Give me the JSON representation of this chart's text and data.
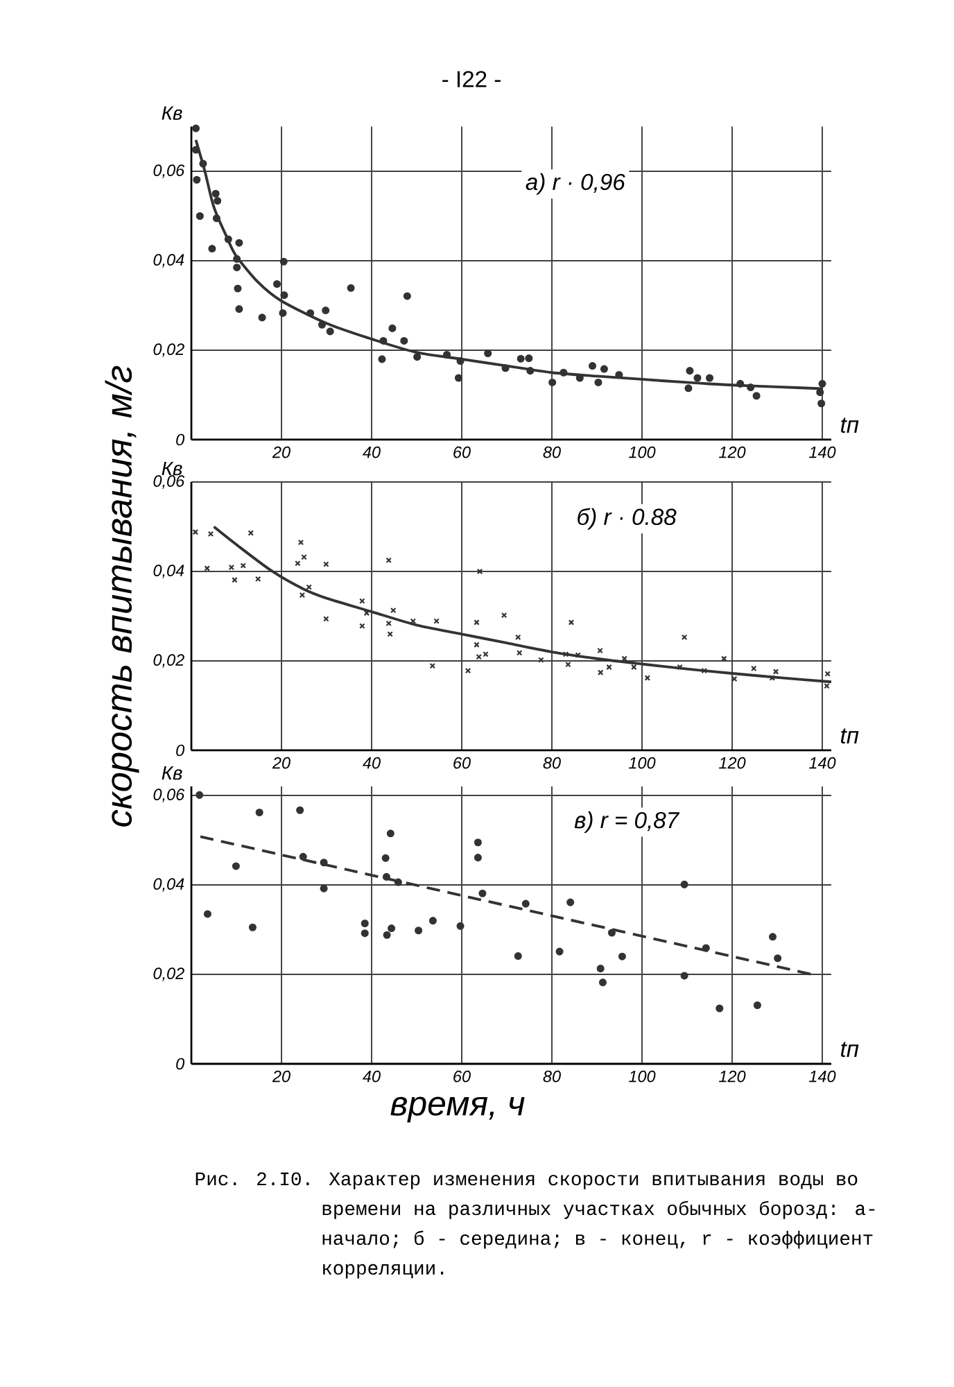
{
  "chart_data": [
    {
      "type": "scatter",
      "title": "а) r · 0,96",
      "xlabel": "tп",
      "ylabel": "Кв",
      "annotations": [
        "- I22 -"
      ],
      "xlim": [
        0,
        142
      ],
      "ylim": [
        0,
        0.07
      ],
      "xticks": [
        20,
        40,
        60,
        80,
        100,
        120,
        140
      ],
      "yticks": [
        0,
        {
          "value": 0.02,
          "label": "0,02"
        },
        {
          "value": 0.04,
          "label": "0,04"
        },
        {
          "value": 0.06,
          "label": "0,06"
        }
      ],
      "grid": true,
      "series": [
        {
          "type": "scatter",
          "marker": "circle",
          "color": "#333333",
          "x": [
            1.0,
            1.0,
            2.6,
            1.2,
            1.9,
            5.4,
            5.8,
            5.6,
            4.6,
            8.2,
            10.6,
            10.1,
            10.1,
            10.3,
            10.6,
            15.7,
            19.0,
            20.5,
            20.6,
            20.3,
            26.4,
            29.0,
            29.8,
            30.8,
            35.4,
            42.6,
            42.3,
            44.6,
            47.9,
            47.2,
            50.1,
            56.7,
            59.7,
            59.3,
            65.8,
            69.7,
            73.1,
            74.9,
            75.2,
            82.6,
            80.1,
            86.2,
            89.0,
            91.6,
            90.3,
            94.9,
            110.6,
            112.3,
            115.0,
            110.3,
            121.8,
            124.1,
            125.4,
            139.5,
            140.0,
            139.8
          ],
          "values": [
            0.0696,
            0.0648,
            0.0617,
            0.0581,
            0.05,
            0.055,
            0.0534,
            0.0495,
            0.0427,
            0.0448,
            0.044,
            0.0404,
            0.0385,
            0.0338,
            0.0292,
            0.0273,
            0.0348,
            0.0398,
            0.0323,
            0.0283,
            0.0283,
            0.0257,
            0.0289,
            0.0242,
            0.0339,
            0.0221,
            0.018,
            0.0249,
            0.0321,
            0.0221,
            0.0185,
            0.019,
            0.0176,
            0.0138,
            0.0193,
            0.016,
            0.0181,
            0.0182,
            0.0154,
            0.015,
            0.0128,
            0.0138,
            0.0165,
            0.0158,
            0.0128,
            0.0145,
            0.0154,
            0.0138,
            0.0138,
            0.0115,
            0.0125,
            0.0117,
            0.0098,
            0.0106,
            0.0125,
            0.0081
          ]
        },
        {
          "type": "line",
          "line_style": "solid",
          "color": "#333333",
          "x": [
            1,
            3,
            5,
            8,
            10,
            15,
            20,
            30,
            40,
            50,
            60,
            70,
            80,
            90,
            100,
            110,
            120,
            130,
            140
          ],
          "values": [
            0.067,
            0.06,
            0.052,
            0.045,
            0.041,
            0.035,
            0.031,
            0.026,
            0.0225,
            0.0195,
            0.018,
            0.0165,
            0.015,
            0.0142,
            0.0135,
            0.0128,
            0.0122,
            0.0118,
            0.0114
          ]
        }
      ]
    },
    {
      "type": "scatter",
      "title": "б) r · 0.88",
      "xlabel": "tп",
      "ylabel": "Кв",
      "annotations": [
        "скорость впитывания, м/г"
      ],
      "xlim": [
        0,
        142
      ],
      "ylim": [
        0,
        0.06
      ],
      "xticks": [
        20,
        40,
        60,
        80,
        100,
        120,
        140
      ],
      "yticks": [
        0,
        {
          "value": 0.02,
          "label": "0,02"
        },
        {
          "value": 0.04,
          "label": "0,04"
        },
        {
          "value": 0.06,
          "label": "0,06"
        }
      ],
      "grid": true,
      "series": [
        {
          "type": "scatter",
          "marker": "cross",
          "color": "#333333",
          "x": [
            0.9,
            4.3,
            3.5,
            8.9,
            9.6,
            11.5,
            13.2,
            14.8,
            24.3,
            23.6,
            25.0,
            24.6,
            26.1,
            29.9,
            29.9,
            37.9,
            37.9,
            38.9,
            43.8,
            43.8,
            44.1,
            44.8,
            49.2,
            54.4,
            53.5,
            61.4,
            63.3,
            63.3,
            63.8,
            65.3,
            64.0,
            69.4,
            72.5,
            72.8,
            77.6,
            83.1,
            83.6,
            84.3,
            85.8,
            90.7,
            90.8,
            92.7,
            96.1,
            98.2,
            101.2,
            109.4,
            108.4,
            113.8,
            118.2,
            120.5,
            124.8,
            128.9,
            129.7,
            141.0,
            141.2
          ],
          "values": [
            0.0488,
            0.0484,
            0.0407,
            0.0409,
            0.0381,
            0.0413,
            0.0486,
            0.0383,
            0.0465,
            0.0418,
            0.0432,
            0.0347,
            0.0365,
            0.0416,
            0.0294,
            0.0334,
            0.0278,
            0.0307,
            0.0425,
            0.0284,
            0.026,
            0.0313,
            0.0289,
            0.0289,
            0.0189,
            0.0178,
            0.0286,
            0.0236,
            0.0209,
            0.0215,
            0.04,
            0.0302,
            0.0253,
            0.0218,
            0.0202,
            0.0215,
            0.0192,
            0.0286,
            0.0213,
            0.0223,
            0.0174,
            0.0186,
            0.0205,
            0.0186,
            0.0162,
            0.0253,
            0.0186,
            0.0178,
            0.0205,
            0.016,
            0.0183,
            0.0162,
            0.0176,
            0.0144,
            0.0171
          ]
        },
        {
          "type": "line",
          "line_style": "solid",
          "color": "#333333",
          "x": [
            5,
            10,
            18,
            25,
            30,
            40,
            50,
            60,
            70,
            80,
            90,
            100,
            110,
            120,
            130,
            142
          ],
          "values": [
            0.05,
            0.046,
            0.04,
            0.036,
            0.034,
            0.031,
            0.028,
            0.026,
            0.024,
            0.022,
            0.0205,
            0.0193,
            0.0182,
            0.0172,
            0.0163,
            0.0153
          ]
        }
      ]
    },
    {
      "type": "scatter",
      "title": "в) r = 0,87",
      "xlabel": "tп",
      "ylabel": "Кв",
      "annotations": [
        "время, ч",
        "Рис. 2.I0. Характер изменения скорости впитывания воды во времени на различных участках обычных борозд: а- начало; б - середина; в - конец, r - коэффициент корреляции."
      ],
      "xlim": [
        0,
        142
      ],
      "ylim": [
        0,
        0.062
      ],
      "xticks": [
        20,
        40,
        60,
        80,
        100,
        120,
        140
      ],
      "yticks": [
        0,
        {
          "value": 0.02,
          "label": "0,02"
        },
        {
          "value": 0.04,
          "label": "0,04"
        },
        {
          "value": 0.06,
          "label": "0,06"
        }
      ],
      "grid": true,
      "series": [
        {
          "type": "scatter",
          "marker": "circle",
          "color": "#333333",
          "x": [
            1.8,
            3.6,
            9.9,
            13.6,
            15.1,
            24.1,
            24.8,
            29.4,
            29.4,
            38.5,
            38.5,
            43.1,
            43.3,
            44.2,
            45.9,
            43.4,
            44.4,
            50.4,
            53.6,
            59.7,
            63.6,
            63.6,
            64.6,
            72.5,
            74.2,
            81.7,
            84.1,
            90.8,
            91.3,
            93.3,
            95.6,
            109.4,
            109.4,
            114.2,
            117.2,
            125.6,
            129.0,
            130.1
          ],
          "values": [
            0.0601,
            0.0335,
            0.0442,
            0.0305,
            0.0562,
            0.0567,
            0.0463,
            0.045,
            0.0392,
            0.0314,
            0.0292,
            0.046,
            0.0418,
            0.0515,
            0.0406,
            0.0288,
            0.0303,
            0.0298,
            0.032,
            0.0308,
            0.0495,
            0.0461,
            0.0381,
            0.0241,
            0.0358,
            0.0251,
            0.0361,
            0.0213,
            0.0182,
            0.0293,
            0.024,
            0.0401,
            0.0197,
            0.0259,
            0.0124,
            0.0131,
            0.0284,
            0.0236
          ]
        },
        {
          "type": "line",
          "line_style": "dashed",
          "color": "#333333",
          "x": [
            2,
            139
          ],
          "values": [
            0.0508,
            0.0197
          ]
        }
      ]
    }
  ]
}
